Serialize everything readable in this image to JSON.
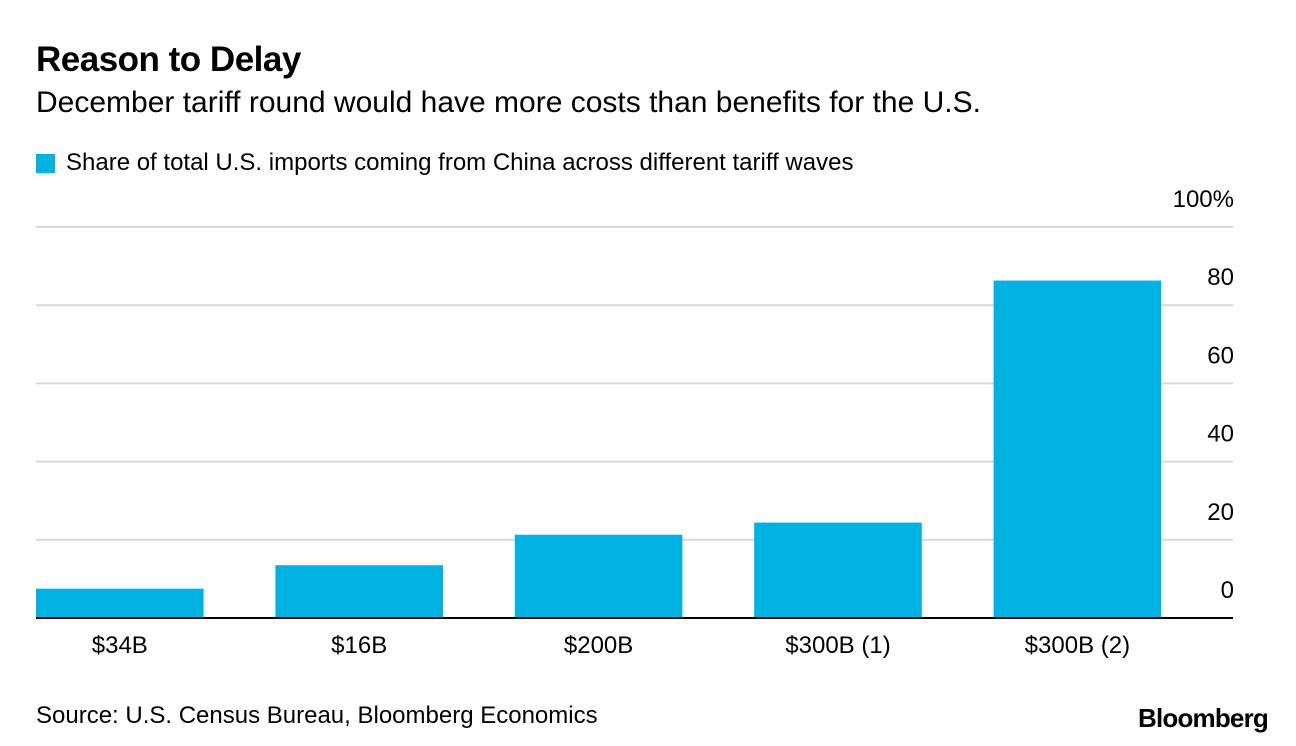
{
  "title": "Reason to Delay",
  "subtitle": "December tariff round would have more costs than benefits for the U.S.",
  "legend_label": "Share of total U.S. imports coming from China across different tariff waves",
  "source": "Source: U.S. Census Bureau, Bloomberg Economics",
  "brand": "Bloomberg",
  "colors": {
    "bar": "#00b2e1",
    "grid": "#d9d9d9",
    "axis": "#000000"
  },
  "chart_data": {
    "type": "bar",
    "title": "Reason to Delay",
    "subtitle": "December tariff round would have more costs than benefits for the U.S.",
    "categories": [
      "$34B",
      "$16B",
      "$200B",
      "$300B (1)",
      "$300B (2)"
    ],
    "series": [
      {
        "name": "Share of total U.S. imports coming from China across different tariff waves",
        "values": [
          7.5,
          13.5,
          21.3,
          24.4,
          86.3
        ]
      }
    ],
    "ylim": [
      0,
      100
    ],
    "yticks": [
      0,
      20,
      40,
      60,
      80,
      100
    ],
    "ytick_labels": [
      "0",
      "20",
      "40",
      "60",
      "80",
      "100%"
    ],
    "y_axis_side": "right",
    "grid": true,
    "xlabel": "",
    "ylabel": ""
  }
}
